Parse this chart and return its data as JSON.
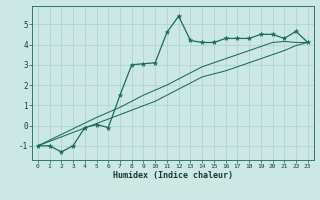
{
  "xlabel": "Humidex (Indice chaleur)",
  "ylabel": "",
  "bg_color": "#cce8e4",
  "grid_color": "#b0d4d0",
  "line_color": "#1a6b5e",
  "xlim": [
    -0.5,
    23.5
  ],
  "ylim": [
    -1.7,
    5.9
  ],
  "xticks": [
    0,
    1,
    2,
    3,
    4,
    5,
    6,
    7,
    8,
    9,
    10,
    11,
    12,
    13,
    14,
    15,
    16,
    17,
    18,
    19,
    20,
    21,
    22,
    23
  ],
  "yticks": [
    -1,
    0,
    1,
    2,
    3,
    4,
    5
  ],
  "line1_x": [
    0,
    1,
    2,
    3,
    4,
    5,
    6,
    7,
    8,
    9,
    10,
    11,
    12,
    13,
    14,
    15,
    16,
    17,
    18,
    19,
    20,
    21,
    22,
    23
  ],
  "line1_y": [
    -1.0,
    -1.0,
    -1.3,
    -1.0,
    -0.1,
    0.05,
    -0.1,
    1.5,
    3.0,
    3.05,
    3.1,
    4.6,
    5.4,
    4.2,
    4.1,
    4.1,
    4.3,
    4.3,
    4.3,
    4.5,
    4.5,
    4.3,
    4.65,
    4.1
  ],
  "line2_x": [
    0,
    1,
    2,
    3,
    4,
    5,
    6,
    7,
    8,
    9,
    10,
    11,
    12,
    13,
    14,
    15,
    16,
    17,
    18,
    19,
    20,
    21,
    22,
    23
  ],
  "line2_y": [
    -1.0,
    -0.78,
    -0.56,
    -0.34,
    -0.12,
    0.1,
    0.32,
    0.54,
    0.76,
    0.98,
    1.2,
    1.5,
    1.8,
    2.1,
    2.4,
    2.55,
    2.7,
    2.9,
    3.1,
    3.3,
    3.5,
    3.7,
    3.95,
    4.1
  ],
  "line3_x": [
    0,
    1,
    2,
    3,
    4,
    5,
    6,
    7,
    8,
    9,
    10,
    11,
    12,
    13,
    14,
    15,
    16,
    17,
    18,
    19,
    20,
    21,
    22,
    23
  ],
  "line3_y": [
    -1.0,
    -0.72,
    -0.44,
    -0.16,
    0.12,
    0.4,
    0.65,
    0.9,
    1.2,
    1.5,
    1.75,
    2.0,
    2.3,
    2.6,
    2.9,
    3.1,
    3.3,
    3.5,
    3.7,
    3.9,
    4.1,
    4.15,
    4.1,
    4.1
  ]
}
